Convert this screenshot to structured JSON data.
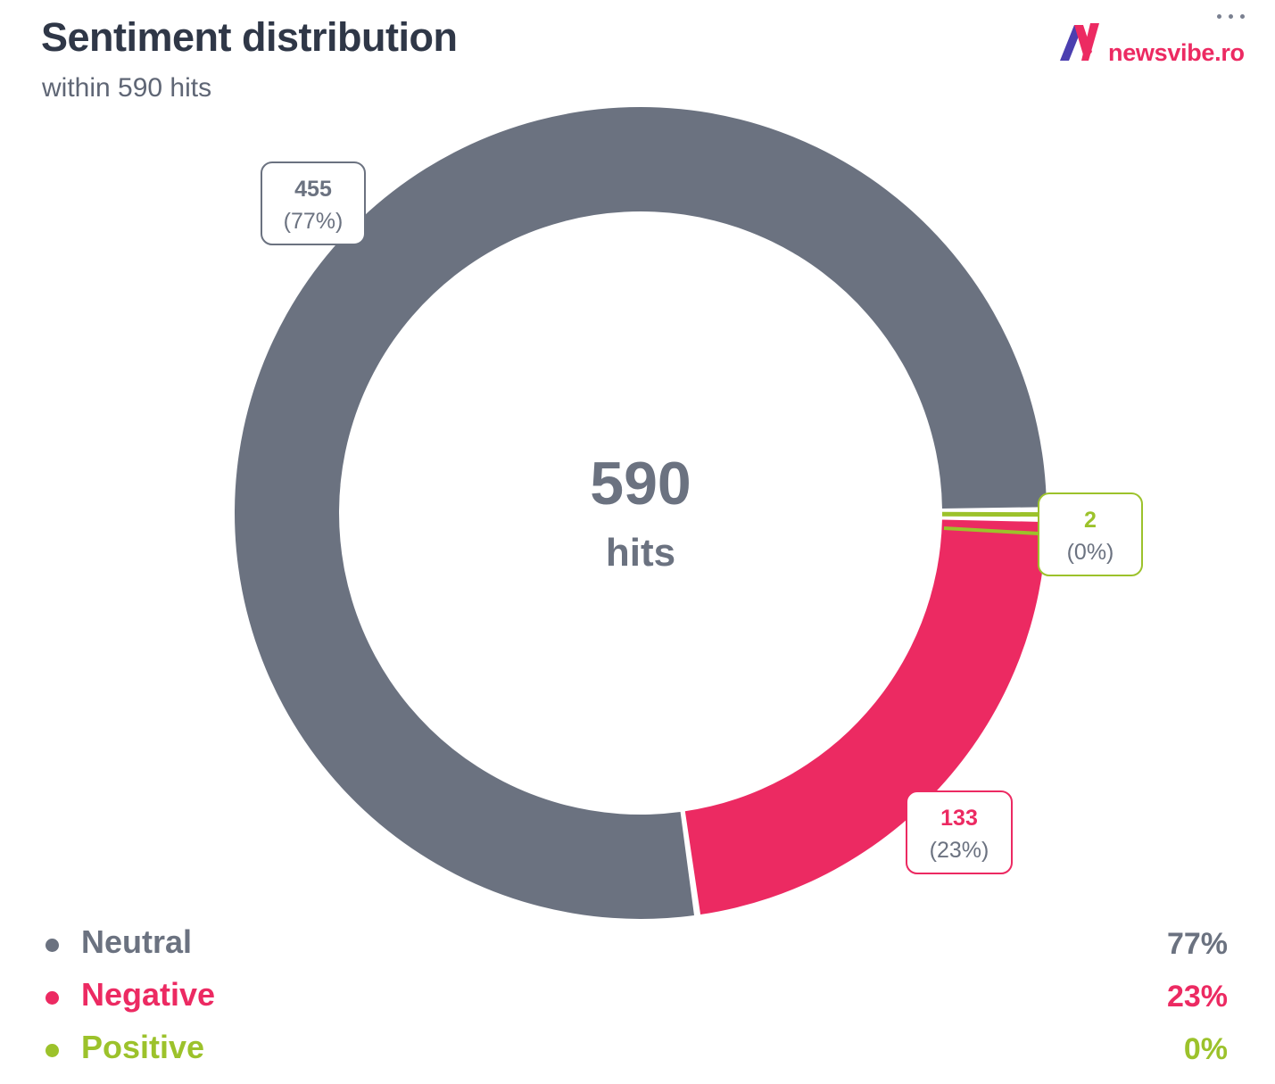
{
  "header": {
    "title": "Sentiment distribution",
    "subtitle": "within 590 hits"
  },
  "logo": {
    "text": "newsvibe.ro",
    "icon": "newsvibe-n-logo-icon",
    "colors": [
      "#ec2a62",
      "#4b3fb0"
    ]
  },
  "menu": {
    "icon": "more-dots-icon"
  },
  "center": {
    "value": "590",
    "unit": "hits"
  },
  "chart_data": {
    "type": "pie",
    "variant": "donut",
    "title": "Sentiment distribution",
    "subtitle": "within 590 hits",
    "total": 590,
    "center_label": "590 hits",
    "categories": [
      "Neutral",
      "Negative",
      "Positive"
    ],
    "values": [
      455,
      133,
      2
    ],
    "percent_labels": [
      "77%",
      "23%",
      "0%"
    ],
    "slices": [
      {
        "label": "Neutral",
        "value": 455,
        "percent": "77%",
        "callout_value": "455",
        "callout_percent": "(77%)",
        "color": "#6b7280"
      },
      {
        "label": "Negative",
        "value": 133,
        "percent": "23%",
        "callout_value": "133",
        "callout_percent": "(23%)",
        "color": "#ec2a62"
      },
      {
        "label": "Positive",
        "value": 2,
        "percent": "0%",
        "callout_value": "2",
        "callout_percent": "(0%)",
        "color": "#9cc22b"
      }
    ],
    "legend_position": "bottom"
  },
  "legend": [
    {
      "label": "Neutral",
      "value": "77%",
      "color": "#6b7280"
    },
    {
      "label": "Negative",
      "value": "23%",
      "color": "#ec2a62"
    },
    {
      "label": "Positive",
      "value": "0%",
      "color": "#9cc22b"
    }
  ]
}
